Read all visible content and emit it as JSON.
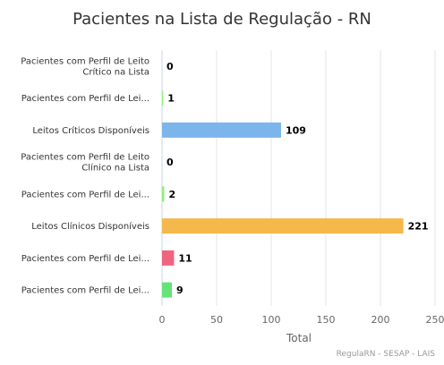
{
  "chart_data": {
    "type": "bar",
    "orientation": "horizontal",
    "title": "Pacientes na Lista de Regulação - RN",
    "xlabel": "Total",
    "ylabel": "",
    "xlim": [
      0,
      250
    ],
    "ticks": [
      0,
      50,
      100,
      150,
      200,
      250
    ],
    "grid": true,
    "legend": "none",
    "categories": [
      "Pacientes com Perfil de Leito Crítico na Lista",
      "Pacientes com Perfil de Lei...",
      "Leitos Críticos Disponíveis",
      "Pacientes com Perfil de Leito Clínico na Lista",
      "Pacientes com Perfil de Lei...",
      "Leitos Clínicos Disponíveis",
      "Pacientes com Perfil de Lei...",
      "Pacientes com Perfil de Lei..."
    ],
    "category_lines": [
      [
        "Pacientes com Perfil de Leito",
        "Crítico na Lista"
      ],
      [
        "Pacientes com Perfil de Lei..."
      ],
      [
        "Leitos Críticos Disponíveis"
      ],
      [
        "Pacientes com Perfil de Leito",
        "Clínico na Lista"
      ],
      [
        "Pacientes com Perfil de Lei..."
      ],
      [
        "Leitos Clínicos Disponíveis"
      ],
      [
        "Pacientes com Perfil de Lei..."
      ],
      [
        "Pacientes com Perfil de Lei..."
      ]
    ],
    "values": [
      0,
      1,
      109,
      0,
      2,
      221,
      11,
      9
    ],
    "colors": [
      "#434348",
      "#90ed7d",
      "#7cb5ec",
      "#434348",
      "#90ed7d",
      "#f5b84a",
      "#f06480",
      "#66e27a"
    ]
  },
  "credits": "RegulaRN - SESAP - LAIS"
}
